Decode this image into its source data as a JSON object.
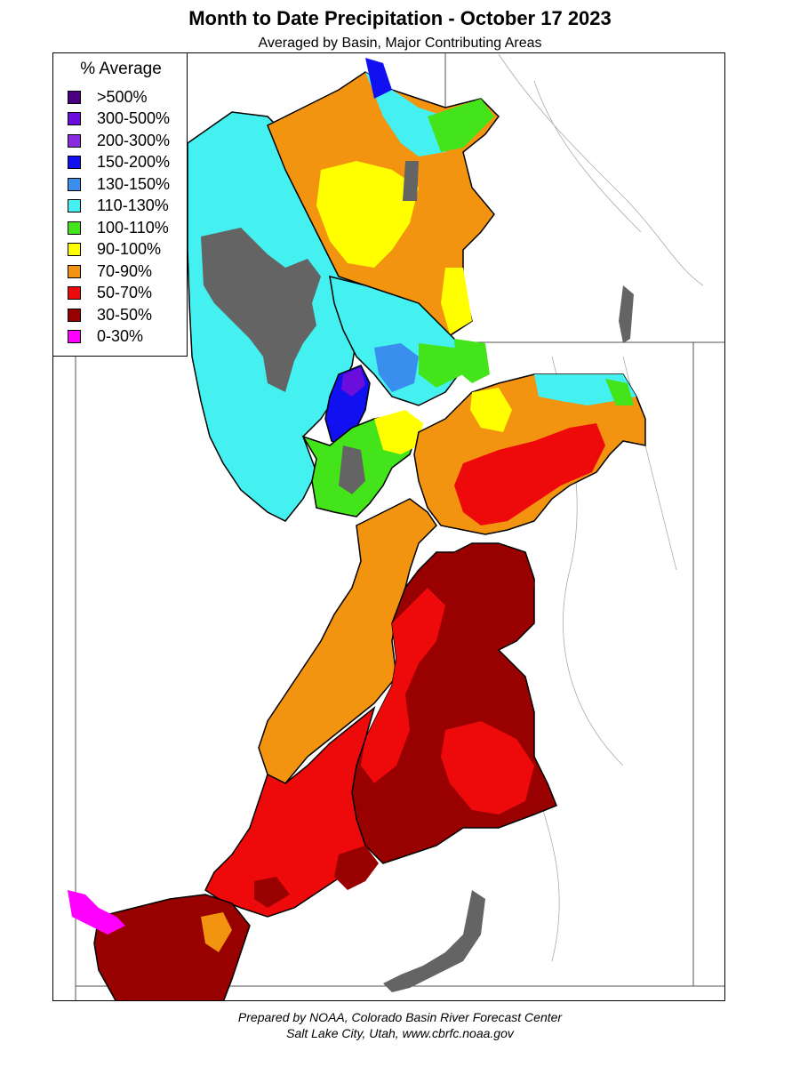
{
  "header": {
    "title": "Month to Date Precipitation - October 17 2023",
    "subtitle": "Averaged by Basin, Major Contributing Areas"
  },
  "legend": {
    "title": "% Average",
    "items": [
      {
        "label": ">500%",
        "color": "#4B0082"
      },
      {
        "label": "300-500%",
        "color": "#6A0DDD"
      },
      {
        "label": "200-300%",
        "color": "#8A2BE2"
      },
      {
        "label": "150-200%",
        "color": "#1010F0"
      },
      {
        "label": "130-150%",
        "color": "#3A8EED"
      },
      {
        "label": "110-130%",
        "color": "#44F0F0"
      },
      {
        "label": "100-110%",
        "color": "#44E41A"
      },
      {
        "label": "90-100%",
        "color": "#FFFF00"
      },
      {
        "label": "70-90%",
        "color": "#F39410"
      },
      {
        "label": "50-70%",
        "color": "#EE0A0A"
      },
      {
        "label": "30-50%",
        "color": "#990000"
      },
      {
        "label": "0-30%",
        "color": "#FF00FF"
      }
    ]
  },
  "map_colors": {
    "no_data": "#646464",
    "border": "#000000",
    "river": "#9A9A9A"
  },
  "footer": {
    "line1": "Prepared by NOAA, Colorado Basin River Forecast Center",
    "line2": "Salt Lake City, Utah, www.cbrfc.noaa.gov"
  }
}
